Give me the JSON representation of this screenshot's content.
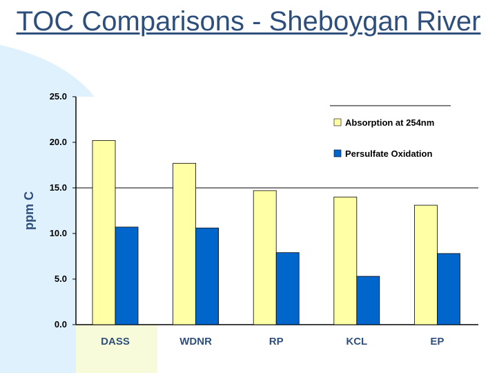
{
  "slide": {
    "title": "TOC Comparisons - Sheboygan River",
    "background_accent": "#dff1fc"
  },
  "chart_data": {
    "type": "bar",
    "title": "",
    "xlabel": "",
    "ylabel": "ppm C",
    "ylim": [
      0,
      25
    ],
    "ytick_step": 5,
    "ytick_labels": [
      "0.0",
      "5.0",
      "10.0",
      "15.0",
      "20.0",
      "25.0"
    ],
    "grid": "y-at-15",
    "legend_position": "top-right",
    "categories": [
      "DASS",
      "WDNR",
      "RP",
      "KCL",
      "EP"
    ],
    "series": [
      {
        "name": "Absorption at 254nm",
        "color": "#ffffa6",
        "values": [
          20.2,
          17.7,
          14.7,
          14.0,
          13.1
        ]
      },
      {
        "name": "Persulfate Oxidation",
        "color": "#0066cc",
        "values": [
          10.7,
          10.6,
          7.9,
          5.3,
          7.8
        ]
      }
    ]
  }
}
